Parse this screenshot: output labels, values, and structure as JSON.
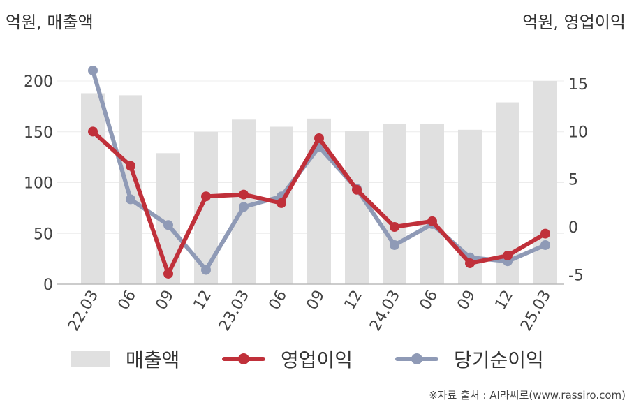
{
  "units": {
    "left": "억원, 매출액",
    "right": "억원, 영업이익"
  },
  "chart_data": {
    "type": "bar+line",
    "categories": [
      "22.03",
      "06",
      "09",
      "12",
      "23.03",
      "06",
      "09",
      "12",
      "24.03",
      "06",
      "09",
      "12",
      "25.03"
    ],
    "bar_series": {
      "name": "매출액",
      "color": "#e0e0e0",
      "values": [
        188,
        186,
        129,
        150,
        162,
        155,
        163,
        151,
        158,
        158,
        152,
        179,
        200
      ]
    },
    "line_series": [
      {
        "name": "영업이익",
        "color": "#c0303a",
        "values": [
          10.0,
          6.4,
          -4.9,
          3.2,
          3.4,
          2.5,
          9.3,
          3.9,
          0.0,
          0.6,
          -3.8,
          -3.0,
          -0.7
        ]
      },
      {
        "name": "당기순이익",
        "color": "#8f9ab6",
        "values": [
          16.4,
          2.9,
          0.2,
          -4.5,
          2.1,
          3.2,
          8.4,
          4.0,
          -1.9,
          0.3,
          -3.2,
          -3.6,
          -1.9
        ]
      }
    ],
    "y_left": {
      "ticks": [
        0,
        50,
        100,
        150,
        200
      ],
      "range": [
        0,
        200
      ]
    },
    "y_right": {
      "ticks": [
        -5,
        0,
        5,
        10,
        15
      ],
      "range": [
        -6,
        15.3
      ]
    },
    "grid": true,
    "legend_position": "bottom"
  },
  "source": "※자료 출처 : AI라씨로(www.rassiro.com)"
}
